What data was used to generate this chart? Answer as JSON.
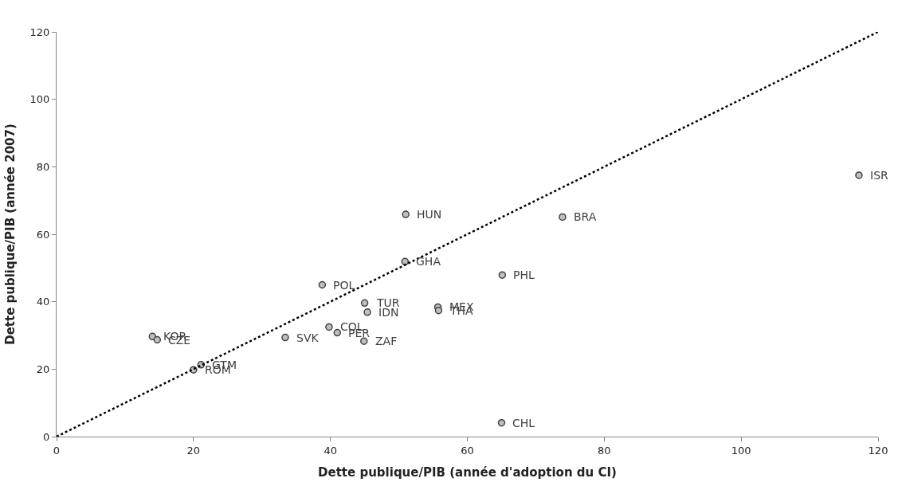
{
  "chart_data": {
    "type": "scatter",
    "xlabel": "Dette publique/PIB (année d'adoption du CI)",
    "ylabel": "Dette publique/PIB (année 2007)",
    "xlim": [
      0,
      120
    ],
    "ylim": [
      0,
      120
    ],
    "xticks": [
      0,
      20,
      40,
      60,
      80,
      100,
      120
    ],
    "yticks": [
      0,
      20,
      40,
      60,
      80,
      100,
      120
    ],
    "grid": false,
    "marker": "circle",
    "series": [
      {
        "color": "#bfbfbf",
        "x": [
          14.0,
          14.7,
          21.1,
          20.0,
          33.4,
          38.8,
          39.8,
          41.0,
          45.0,
          45.4,
          44.9,
          51.0,
          50.9,
          55.7,
          55.8,
          65.1,
          65.0,
          73.9,
          117.2
        ],
        "values": [
          29.7,
          28.7,
          21.3,
          19.8,
          29.4,
          45.0,
          32.5,
          30.8,
          39.6,
          36.9,
          28.3,
          65.9,
          51.9,
          38.4,
          37.4,
          47.9,
          4.1,
          65.1,
          77.5
        ]
      },
      {
        "type": "line",
        "color": "#000000",
        "line_style": "dotted",
        "marker": "none",
        "x": [
          0,
          120
        ],
        "values": [
          0,
          120
        ]
      }
    ],
    "annotations": [
      {
        "text": "KOR",
        "x": 14.0,
        "y": 29.7
      },
      {
        "text": "CZE",
        "x": 14.7,
        "y": 28.7
      },
      {
        "text": "GTM",
        "x": 21.1,
        "y": 21.3
      },
      {
        "text": "ROM",
        "x": 20.0,
        "y": 19.8
      },
      {
        "text": "SVK",
        "x": 33.4,
        "y": 29.4
      },
      {
        "text": "POL",
        "x": 38.8,
        "y": 45.0
      },
      {
        "text": "COL",
        "x": 39.8,
        "y": 32.5
      },
      {
        "text": "PER",
        "x": 41.0,
        "y": 30.8
      },
      {
        "text": "TUR",
        "x": 45.0,
        "y": 39.6
      },
      {
        "text": "IDN",
        "x": 45.4,
        "y": 36.9
      },
      {
        "text": "ZAF",
        "x": 44.9,
        "y": 28.3
      },
      {
        "text": "HUN",
        "x": 51.0,
        "y": 65.9
      },
      {
        "text": "GHA",
        "x": 50.9,
        "y": 51.9
      },
      {
        "text": "MEX",
        "x": 55.7,
        "y": 38.4
      },
      {
        "text": "THA",
        "x": 55.8,
        "y": 37.4
      },
      {
        "text": "PHL",
        "x": 65.1,
        "y": 47.9
      },
      {
        "text": "CHL",
        "x": 65.0,
        "y": 4.1
      },
      {
        "text": "BRA",
        "x": 73.9,
        "y": 65.1
      },
      {
        "text": "ISR",
        "x": 117.2,
        "y": 77.5
      }
    ]
  }
}
